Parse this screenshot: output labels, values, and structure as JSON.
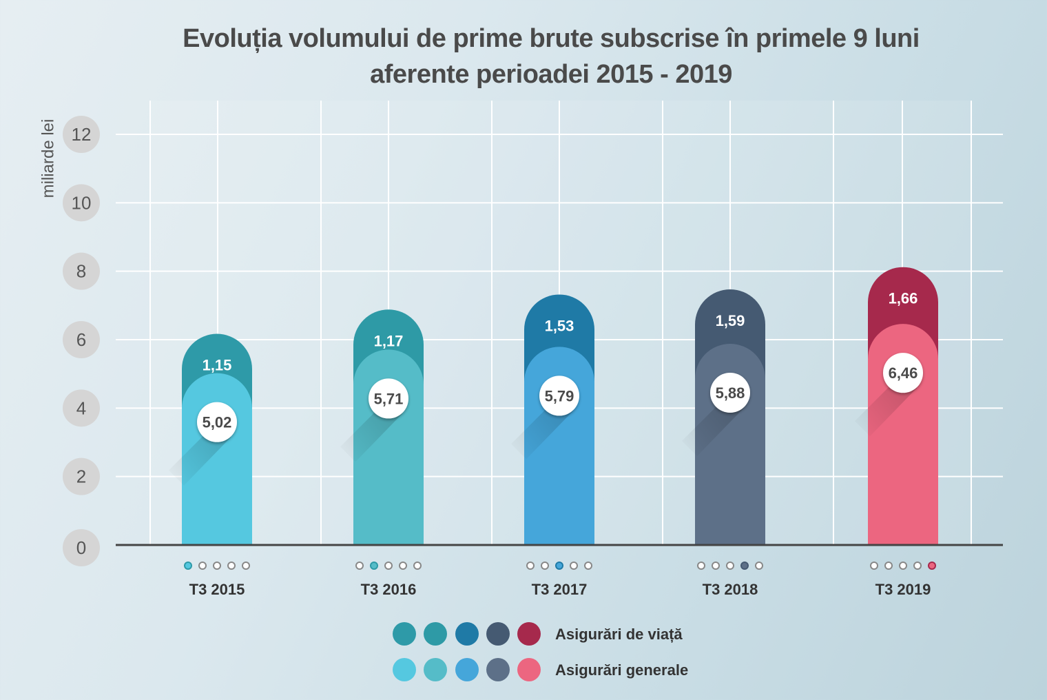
{
  "chart_data": {
    "type": "bar",
    "stacked": true,
    "title_lines": [
      "Evoluția volumului de prime brute subscrise în primele 9 luni",
      "aferente perioadei 2015 - 2019"
    ],
    "ylabel": "miliarde lei",
    "ylim": [
      0,
      12
    ],
    "yticks": [
      "0",
      "2",
      "4",
      "6",
      "8",
      "10",
      "12"
    ],
    "grid": true,
    "categories": [
      "T3 2015",
      "T3 2016",
      "T3 2017",
      "T3 2018",
      "T3 2019"
    ],
    "series": [
      {
        "name": "Asigurări generale",
        "values": [
          5.02,
          5.71,
          5.79,
          5.88,
          6.46
        ],
        "labels": [
          "5,02",
          "5,71",
          "5,79",
          "5,88",
          "6,46"
        ],
        "colors": [
          "#55c8e0",
          "#55bcc8",
          "#45a6da",
          "#5d7088",
          "#ec6680"
        ]
      },
      {
        "name": "Asigurări de viață",
        "values": [
          1.15,
          1.17,
          1.53,
          1.59,
          1.66
        ],
        "labels": [
          "1,15",
          "1,17",
          "1,53",
          "1,59",
          "1,66"
        ],
        "colors": [
          "#2e9aa8",
          "#2e9aa6",
          "#1f7aa6",
          "#455a72",
          "#a6294c"
        ]
      }
    ],
    "legend_position": "bottom"
  }
}
